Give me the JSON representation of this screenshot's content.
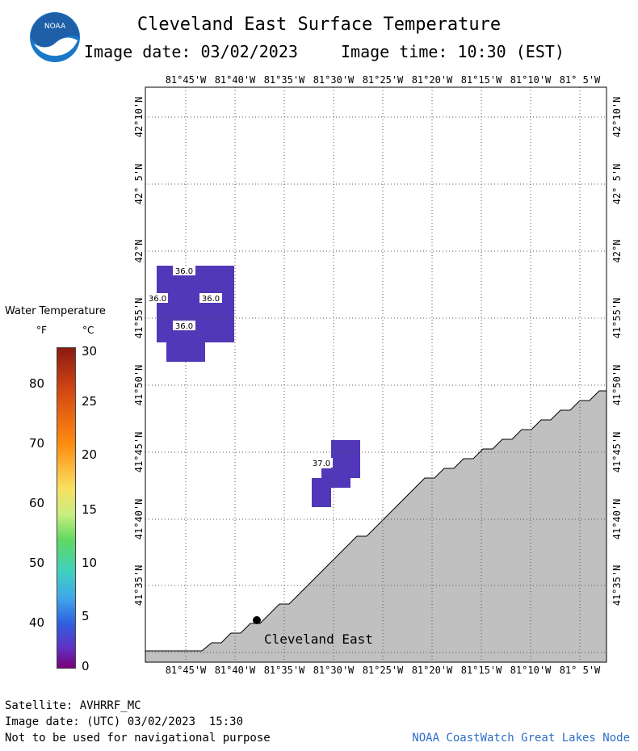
{
  "header": {
    "title": "Cleveland East Surface Temperature",
    "image_date": "Image date: 03/02/2023",
    "image_time": "Image time: 10:30 (EST)",
    "logo_text": "NOAA"
  },
  "legend": {
    "title": "Water Temperature",
    "unit_f": "°F",
    "unit_c": "°C",
    "ticks_f": [
      "80",
      "70",
      "60",
      "50",
      "40"
    ],
    "ticks_c": [
      "30",
      "25",
      "20",
      "15",
      "10",
      "5",
      "0"
    ]
  },
  "map": {
    "lon_labels": [
      "81°45'W",
      "81°40'W",
      "81°35'W",
      "81°30'W",
      "81°25'W",
      "81°20'W",
      "81°15'W",
      "81°10'W",
      "81° 5'W"
    ],
    "lat_labels": [
      "42°10'N",
      "42° 5'N",
      "42°N",
      "41°55'N",
      "41°50'N",
      "41°45'N",
      "41°40'N",
      "41°35'N"
    ],
    "station_label": "Cleveland East",
    "cell_labels": [
      "36.0",
      "36.0",
      "36.0",
      "36.0",
      "37.0"
    ],
    "land_color": "#c0c0c0",
    "water_color": "#ffffff",
    "cell_color": "#5038b8"
  },
  "footer": {
    "satellite": "Satellite: AVHRRF_MC",
    "utc_date": "Image date: (UTC) 03/02/2023  15:30",
    "disclaimer": "Not to be used for navigational purpose",
    "credit": "NOAA CoastWatch Great Lakes Node"
  }
}
